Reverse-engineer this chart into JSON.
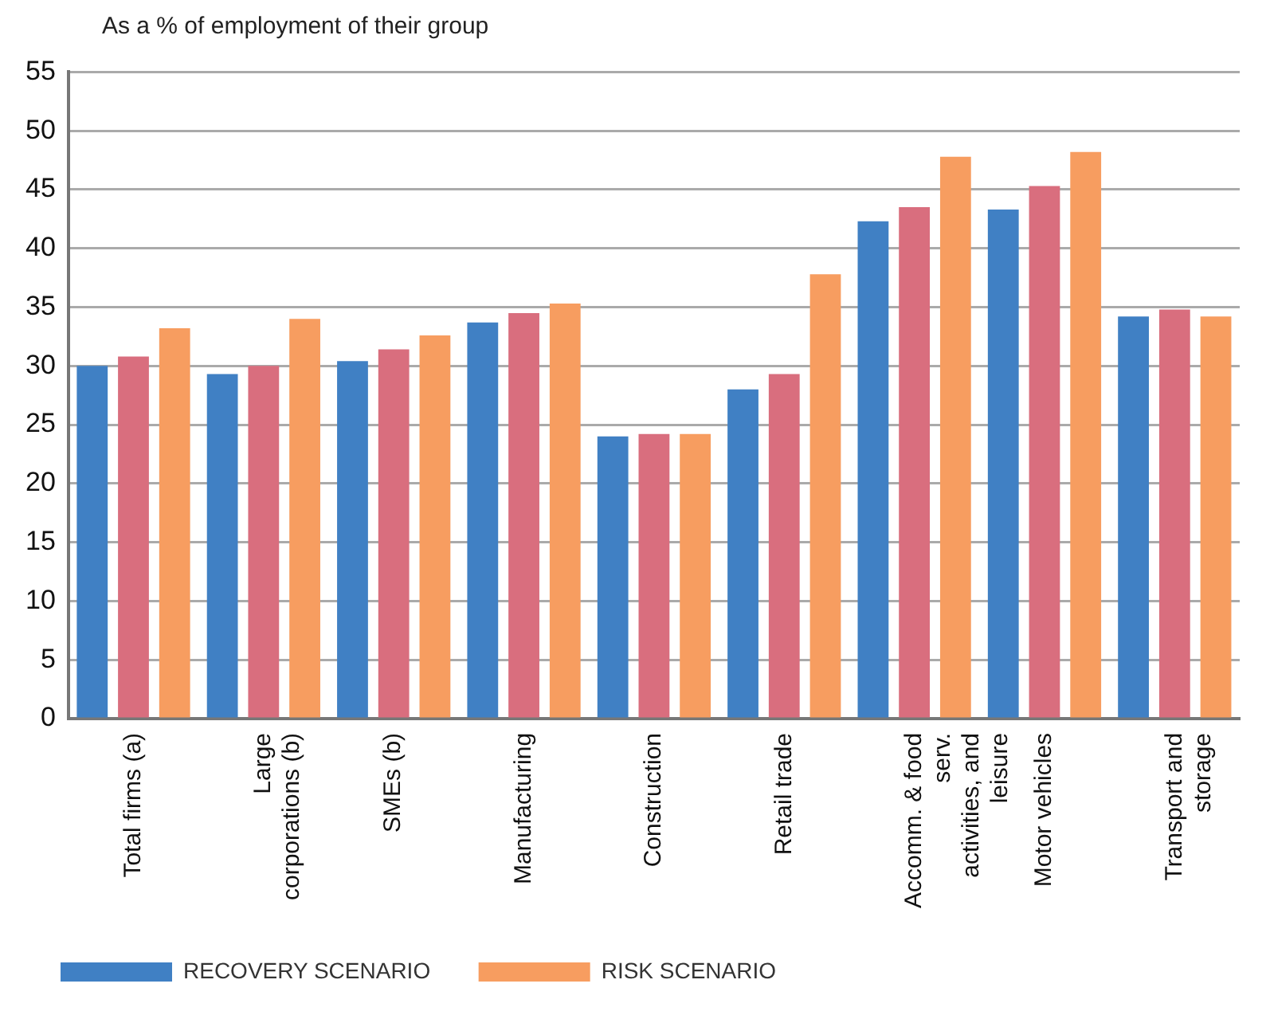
{
  "chart_data": {
    "type": "bar",
    "ylabel": "As a % of employment of their group",
    "categories": [
      "Total firms (a)",
      "Large corporations (b)",
      "SMEs (b)",
      "Manufacturing",
      "Construction",
      "Retail trade",
      "Accomm. & food serv. activities, and leisure",
      "Motor vehicles",
      "Transport and storage"
    ],
    "series": [
      {
        "name": "RECOVERY SCENARIO",
        "color": "#4080c4",
        "values": [
          30,
          29.3,
          30.4,
          33.7,
          24,
          28,
          42.3,
          43.3,
          34.2
        ]
      },
      {
        "color": "#d96e7e",
        "values": [
          30.8,
          30,
          31.4,
          34.5,
          24.2,
          29.3,
          43.5,
          45.3,
          34.8
        ]
      },
      {
        "name": "RISK SCENARIO",
        "color": "#f79d60",
        "values": [
          33.2,
          34,
          32.6,
          35.3,
          24.2,
          37.8,
          47.8,
          48.2,
          34.2
        ]
      }
    ],
    "ylim": [
      0,
      55
    ],
    "yticks": [
      0,
      5,
      10,
      15,
      20,
      25,
      30,
      35,
      40,
      45,
      50,
      55
    ],
    "grid": "y",
    "legend": "bottom"
  }
}
